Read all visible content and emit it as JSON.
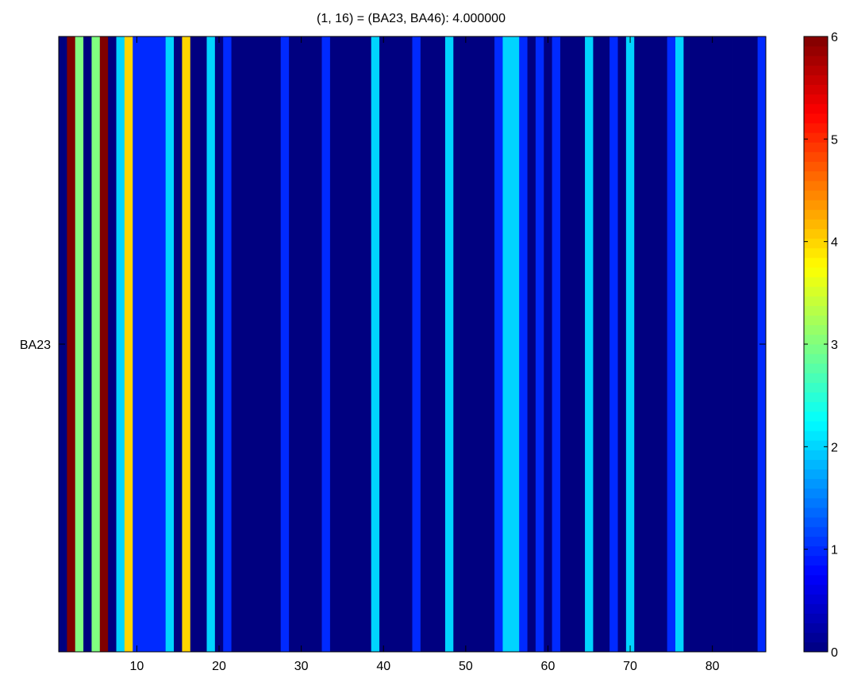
{
  "chart_data": {
    "type": "heatmap",
    "title": "(1, 16) = (BA23, BA46): 4.000000",
    "row_labels": [
      "BA23"
    ],
    "x_ticks": [
      10,
      20,
      30,
      40,
      50,
      60,
      70,
      80
    ],
    "x_range": [
      0.5,
      86.5
    ],
    "colormap": "jet",
    "clim": [
      0,
      6
    ],
    "colorbar_ticks": [
      0,
      1,
      2,
      3,
      4,
      5,
      6
    ],
    "values": [
      0,
      6,
      3,
      0,
      3,
      6,
      0,
      2,
      4,
      1,
      1,
      1,
      1,
      2,
      0,
      4,
      0,
      0,
      2,
      0,
      1,
      0,
      0,
      0,
      0,
      0,
      0,
      1,
      0,
      0,
      0,
      0,
      1,
      0,
      0,
      0,
      0,
      0,
      2,
      0,
      0,
      0,
      0,
      1,
      0,
      0,
      0,
      2,
      0,
      0,
      0,
      0,
      0,
      1,
      2,
      2,
      1,
      0,
      1,
      0,
      1,
      0,
      0,
      0,
      2,
      0,
      0,
      1,
      0,
      2,
      0,
      0,
      0,
      0,
      1,
      2,
      0,
      0,
      0,
      0,
      0,
      0,
      0,
      0,
      0,
      1
    ]
  }
}
